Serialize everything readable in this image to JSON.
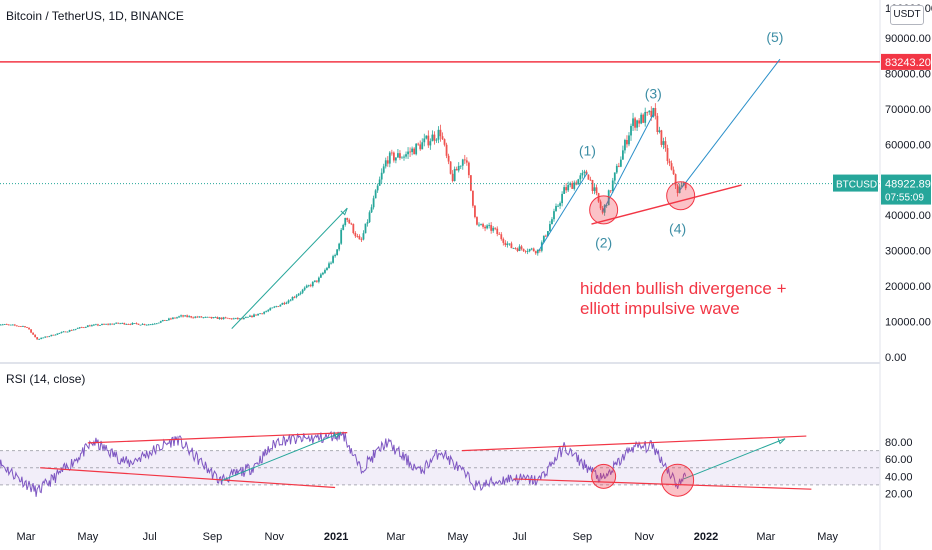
{
  "header": {
    "title": "Bitcoin / TetherUS, 1D, BINANCE",
    "currency": "USDT"
  },
  "rsi": {
    "title": "RSI (14, close)"
  },
  "annotation": {
    "line1": "hidden bullish divergence +",
    "line2": "elliott impulsive wave"
  },
  "colors": {
    "up": "#26a69a",
    "down": "#ef5350",
    "rsi": "#7e57c2",
    "arrow": "#26a69a",
    "trend": "#f23645",
    "waveLabel": "#3d8ea5",
    "blueLine": "#2a8fc9"
  },
  "chart_data": [
    {
      "type": "candlestick",
      "title": "Bitcoin / TetherUS, 1D, BINANCE",
      "ylim": [
        0,
        100000
      ],
      "y_ticks": [
        "0.00",
        "10000.00",
        "20000.00",
        "30000.00",
        "40000.00",
        "50000.00",
        "60000.00",
        "70000.00",
        "80000.00",
        "90000.00",
        "100000.00"
      ],
      "x_ticks": [
        "Mar",
        "May",
        "Jul",
        "Sep",
        "Nov",
        "2021",
        "Mar",
        "May",
        "Jul",
        "Sep",
        "Nov",
        "2022",
        "Mar",
        "May"
      ],
      "symbol_label": "BTCUSDT",
      "last_price": "48922.89",
      "countdown": "07:55:09",
      "horizontal_level": {
        "value": 83243.2,
        "label": "83243.20"
      },
      "price_path": [
        [
          "2020-02-01",
          9300
        ],
        [
          "2020-03-01",
          8600
        ],
        [
          "2020-03-12",
          5000
        ],
        [
          "2020-04-01",
          6600
        ],
        [
          "2020-05-01",
          8800
        ],
        [
          "2020-06-01",
          9500
        ],
        [
          "2020-07-01",
          9200
        ],
        [
          "2020-08-01",
          11500
        ],
        [
          "2020-09-01",
          11000
        ],
        [
          "2020-10-01",
          10700
        ],
        [
          "2020-10-25",
          13000
        ],
        [
          "2020-11-15",
          16000
        ],
        [
          "2020-12-15",
          22000
        ],
        [
          "2021-01-01",
          29000
        ],
        [
          "2021-01-10",
          40000
        ],
        [
          "2021-01-25",
          32000
        ],
        [
          "2021-02-20",
          56000
        ],
        [
          "2021-03-10",
          57000
        ],
        [
          "2021-04-14",
          63500
        ],
        [
          "2021-04-25",
          50000
        ],
        [
          "2021-05-08",
          57000
        ],
        [
          "2021-05-20",
          37000
        ],
        [
          "2021-06-05",
          36000
        ],
        [
          "2021-06-22",
          31000
        ],
        [
          "2021-07-20",
          30000
        ],
        [
          "2021-08-14",
          47000
        ],
        [
          "2021-09-06",
          52000
        ],
        [
          "2021-09-21",
          40500
        ],
        [
          "2021-10-20",
          66000
        ],
        [
          "2021-11-10",
          68500
        ],
        [
          "2021-11-26",
          54000
        ],
        [
          "2021-12-04",
          47000
        ],
        [
          "2021-12-12",
          48922
        ]
      ],
      "wave_labels": [
        {
          "label": "(1)",
          "date": "2021-09-06",
          "price": 58000
        },
        {
          "label": "(2)",
          "date": "2021-09-22",
          "price": 32000
        },
        {
          "label": "(3)",
          "date": "2021-11-10",
          "price": 74000
        },
        {
          "label": "(4)",
          "date": "2021-12-04",
          "price": 36000
        },
        {
          "label": "(5)",
          "date": "2022-03-10",
          "price": 90000
        }
      ]
    },
    {
      "type": "line",
      "title": "RSI (14, close)",
      "ylim": [
        12,
        94
      ],
      "y_ticks": [
        "20.00",
        "40.00",
        "60.00",
        "80.00"
      ],
      "levels": [
        70,
        50,
        30
      ],
      "rsi_path": [
        [
          "2020-02-01",
          58
        ],
        [
          "2020-03-12",
          22
        ],
        [
          "2020-04-10",
          50
        ],
        [
          "2020-05-07",
          80
        ],
        [
          "2020-06-10",
          55
        ],
        [
          "2020-07-28",
          84
        ],
        [
          "2020-09-08",
          35
        ],
        [
          "2020-10-10",
          50
        ],
        [
          "2020-11-05",
          82
        ],
        [
          "2020-12-20",
          85
        ],
        [
          "2021-01-08",
          90
        ],
        [
          "2021-01-25",
          48
        ],
        [
          "2021-02-20",
          80
        ],
        [
          "2021-03-25",
          45
        ],
        [
          "2021-04-14",
          70
        ],
        [
          "2021-05-20",
          28
        ],
        [
          "2021-06-22",
          38
        ],
        [
          "2021-07-20",
          35
        ],
        [
          "2021-08-14",
          74
        ],
        [
          "2021-09-21",
          35
        ],
        [
          "2021-10-20",
          74
        ],
        [
          "2021-11-10",
          75
        ],
        [
          "2021-11-26",
          45
        ],
        [
          "2021-12-04",
          30
        ],
        [
          "2021-12-12",
          40
        ]
      ]
    }
  ]
}
